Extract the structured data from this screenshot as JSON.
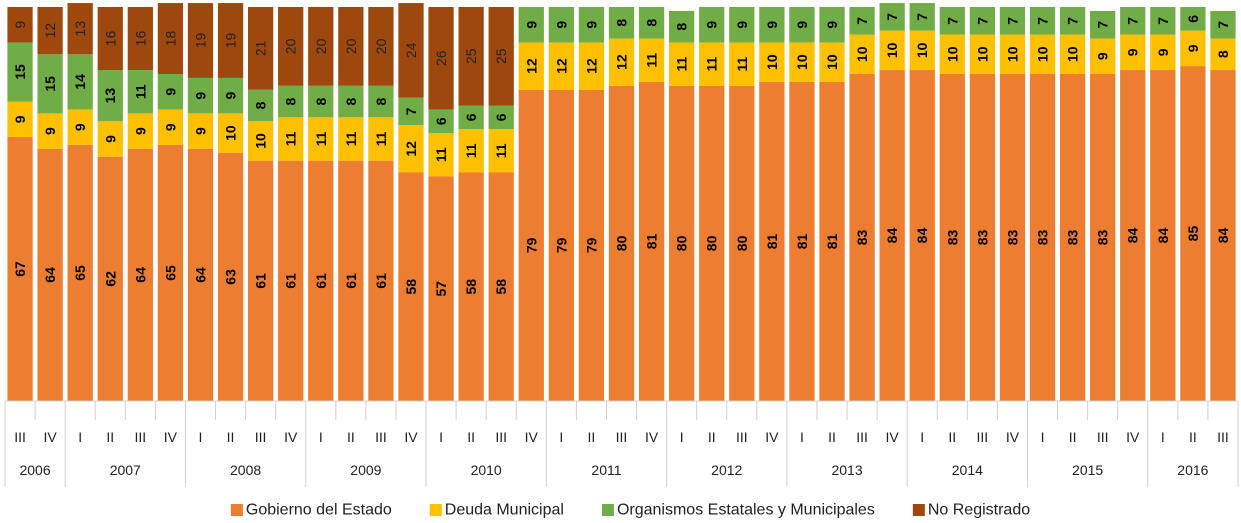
{
  "chart_data": {
    "type": "stacked_bar_100",
    "categories": [
      "III",
      "IV",
      "I",
      "II",
      "III",
      "IV",
      "I",
      "II",
      "III",
      "IV",
      "I",
      "II",
      "III",
      "IV",
      "I",
      "II",
      "III",
      "IV",
      "I",
      "II",
      "III",
      "IV",
      "I",
      "II",
      "III",
      "IV",
      "I",
      "II",
      "III",
      "IV",
      "I",
      "II",
      "III",
      "IV",
      "I",
      "II",
      "III",
      "IV",
      "I",
      "II",
      "III"
    ],
    "groups": [
      "2006",
      null,
      "2007",
      null,
      null,
      null,
      "2008",
      null,
      null,
      null,
      "2009",
      null,
      null,
      null,
      "2010",
      null,
      null,
      null,
      "2011",
      null,
      null,
      null,
      "2012",
      null,
      null,
      null,
      "2013",
      null,
      null,
      null,
      "2014",
      null,
      null,
      null,
      "2015",
      null,
      null,
      null,
      "2016",
      null,
      null
    ],
    "ylim": [
      0,
      100
    ],
    "series": [
      {
        "name": "Gobierno del Estado",
        "color": "#ED7D31",
        "values": [
          67,
          64,
          65,
          62,
          64,
          65,
          64,
          63,
          61,
          61,
          61,
          61,
          61,
          58,
          57,
          58,
          58,
          79,
          79,
          79,
          80,
          81,
          80,
          80,
          80,
          81,
          81,
          81,
          83,
          84,
          84,
          83,
          83,
          83,
          83,
          83,
          83,
          84,
          84,
          85,
          84
        ]
      },
      {
        "name": "Deuda Municipal",
        "color": "#FFC000",
        "values": [
          9,
          9,
          9,
          9,
          9,
          9,
          9,
          10,
          10,
          11,
          11,
          11,
          11,
          12,
          11,
          11,
          11,
          12,
          12,
          12,
          12,
          11,
          11,
          11,
          11,
          10,
          10,
          10,
          10,
          10,
          10,
          10,
          10,
          10,
          10,
          10,
          9,
          9,
          9,
          9,
          8
        ]
      },
      {
        "name": "Organismos Estatales y Municipales",
        "color": "#70AD47",
        "values": [
          15,
          15,
          14,
          13,
          11,
          9,
          9,
          9,
          8,
          8,
          8,
          8,
          8,
          7,
          6,
          6,
          6,
          9,
          9,
          9,
          8,
          8,
          8,
          9,
          9,
          9,
          9,
          9,
          7,
          7,
          7,
          7,
          7,
          7,
          7,
          7,
          7,
          7,
          7,
          6,
          7
        ]
      },
      {
        "name": "No Registrado",
        "color": "#9E480E",
        "values": [
          9,
          12,
          13,
          16,
          16,
          18,
          19,
          19,
          21,
          20,
          20,
          20,
          20,
          24,
          26,
          25,
          25,
          null,
          null,
          null,
          null,
          null,
          null,
          null,
          null,
          null,
          null,
          null,
          null,
          null,
          null,
          null,
          null,
          null,
          null,
          null,
          null,
          null,
          null,
          null,
          null
        ]
      }
    ]
  }
}
